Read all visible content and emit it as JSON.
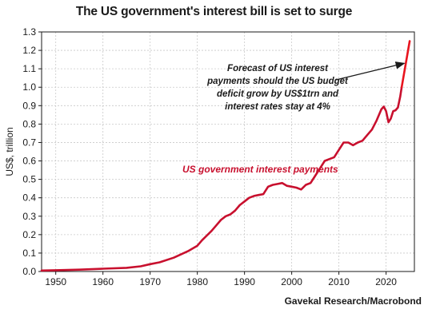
{
  "chart_data": {
    "type": "line",
    "title": "The US government's interest bill is set to surge",
    "ylabel": "US$, trillion",
    "xlabel": "",
    "source": "Gavekal Research/Macrobond",
    "xlim": [
      1947,
      2026
    ],
    "ylim": [
      0.0,
      1.3
    ],
    "x_ticks": [
      1950,
      1960,
      1970,
      1980,
      1990,
      2000,
      2010,
      2020
    ],
    "y_ticks": [
      0.0,
      0.1,
      0.2,
      0.3,
      0.4,
      0.5,
      0.6,
      0.7,
      0.8,
      0.9,
      1.0,
      1.1,
      1.2,
      1.3
    ],
    "grid": true,
    "series": [
      {
        "name": "US government interest payments",
        "color": "#c8102e",
        "x": [
          1947,
          1950,
          1955,
          1960,
          1965,
          1968,
          1970,
          1972,
          1975,
          1978,
          1980,
          1981,
          1982,
          1983,
          1984,
          1985,
          1986,
          1987,
          1988,
          1989,
          1990,
          1991,
          1992,
          1993,
          1994,
          1995,
          1996,
          1997,
          1998,
          1999,
          2000,
          2001,
          2002,
          2003,
          2004,
          2005,
          2006,
          2007,
          2008,
          2009,
          2010,
          2011,
          2012,
          2013,
          2014,
          2015,
          2016,
          2017,
          2018,
          2019,
          2019.5,
          2020,
          2020.5,
          2021,
          2021.5,
          2022,
          2022.5,
          2023,
          2023.3
        ],
        "values": [
          0.005,
          0.007,
          0.01,
          0.015,
          0.02,
          0.028,
          0.04,
          0.05,
          0.075,
          0.11,
          0.14,
          0.17,
          0.195,
          0.22,
          0.25,
          0.28,
          0.3,
          0.31,
          0.33,
          0.36,
          0.38,
          0.4,
          0.41,
          0.415,
          0.42,
          0.46,
          0.47,
          0.475,
          0.48,
          0.465,
          0.46,
          0.455,
          0.445,
          0.47,
          0.48,
          0.52,
          0.56,
          0.6,
          0.61,
          0.62,
          0.66,
          0.7,
          0.7,
          0.685,
          0.7,
          0.71,
          0.74,
          0.77,
          0.82,
          0.88,
          0.895,
          0.87,
          0.81,
          0.83,
          0.87,
          0.875,
          0.89,
          0.95,
          1.0
        ]
      },
      {
        "name": "Forecast",
        "color": "#e8141e",
        "x": [
          2023.3,
          2025
        ],
        "values": [
          1.0,
          1.25
        ]
      }
    ],
    "annotations": {
      "series_label": "US government interest payments",
      "forecast_note": [
        "Forecast of US interest",
        "payments should the US budget",
        "deficit grow by US$1trn and",
        "interest rates stay at 4%"
      ]
    }
  }
}
